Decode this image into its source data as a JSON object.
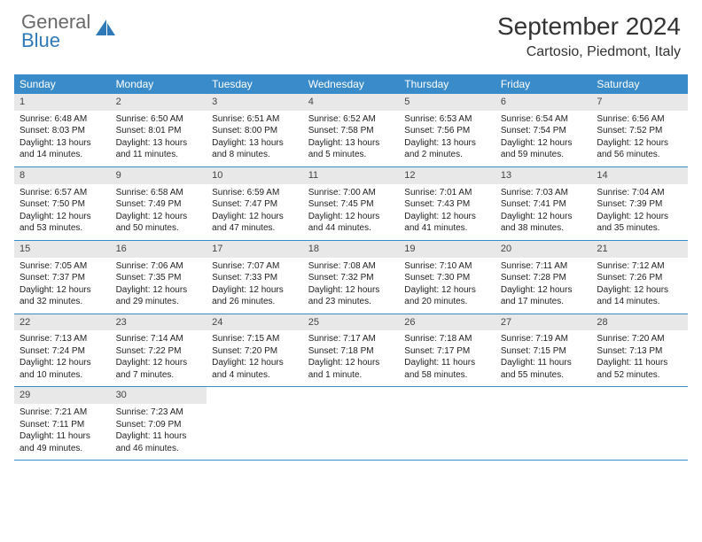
{
  "logo": {
    "general": "General",
    "blue": "Blue"
  },
  "title": "September 2024",
  "location": "Cartosio, Piedmont, Italy",
  "colors": {
    "header_bg": "#3a8bc9",
    "header_text": "#ffffff",
    "daynum_bg": "#e8e8e8",
    "border": "#3a8bc9",
    "logo_gray": "#6a6a6a",
    "logo_blue": "#2f79b9"
  },
  "weekdays": [
    "Sunday",
    "Monday",
    "Tuesday",
    "Wednesday",
    "Thursday",
    "Friday",
    "Saturday"
  ],
  "weeks": [
    [
      {
        "n": "1",
        "sr": "Sunrise: 6:48 AM",
        "ss": "Sunset: 8:03 PM",
        "d1": "Daylight: 13 hours",
        "d2": "and 14 minutes."
      },
      {
        "n": "2",
        "sr": "Sunrise: 6:50 AM",
        "ss": "Sunset: 8:01 PM",
        "d1": "Daylight: 13 hours",
        "d2": "and 11 minutes."
      },
      {
        "n": "3",
        "sr": "Sunrise: 6:51 AM",
        "ss": "Sunset: 8:00 PM",
        "d1": "Daylight: 13 hours",
        "d2": "and 8 minutes."
      },
      {
        "n": "4",
        "sr": "Sunrise: 6:52 AM",
        "ss": "Sunset: 7:58 PM",
        "d1": "Daylight: 13 hours",
        "d2": "and 5 minutes."
      },
      {
        "n": "5",
        "sr": "Sunrise: 6:53 AM",
        "ss": "Sunset: 7:56 PM",
        "d1": "Daylight: 13 hours",
        "d2": "and 2 minutes."
      },
      {
        "n": "6",
        "sr": "Sunrise: 6:54 AM",
        "ss": "Sunset: 7:54 PM",
        "d1": "Daylight: 12 hours",
        "d2": "and 59 minutes."
      },
      {
        "n": "7",
        "sr": "Sunrise: 6:56 AM",
        "ss": "Sunset: 7:52 PM",
        "d1": "Daylight: 12 hours",
        "d2": "and 56 minutes."
      }
    ],
    [
      {
        "n": "8",
        "sr": "Sunrise: 6:57 AM",
        "ss": "Sunset: 7:50 PM",
        "d1": "Daylight: 12 hours",
        "d2": "and 53 minutes."
      },
      {
        "n": "9",
        "sr": "Sunrise: 6:58 AM",
        "ss": "Sunset: 7:49 PM",
        "d1": "Daylight: 12 hours",
        "d2": "and 50 minutes."
      },
      {
        "n": "10",
        "sr": "Sunrise: 6:59 AM",
        "ss": "Sunset: 7:47 PM",
        "d1": "Daylight: 12 hours",
        "d2": "and 47 minutes."
      },
      {
        "n": "11",
        "sr": "Sunrise: 7:00 AM",
        "ss": "Sunset: 7:45 PM",
        "d1": "Daylight: 12 hours",
        "d2": "and 44 minutes."
      },
      {
        "n": "12",
        "sr": "Sunrise: 7:01 AM",
        "ss": "Sunset: 7:43 PM",
        "d1": "Daylight: 12 hours",
        "d2": "and 41 minutes."
      },
      {
        "n": "13",
        "sr": "Sunrise: 7:03 AM",
        "ss": "Sunset: 7:41 PM",
        "d1": "Daylight: 12 hours",
        "d2": "and 38 minutes."
      },
      {
        "n": "14",
        "sr": "Sunrise: 7:04 AM",
        "ss": "Sunset: 7:39 PM",
        "d1": "Daylight: 12 hours",
        "d2": "and 35 minutes."
      }
    ],
    [
      {
        "n": "15",
        "sr": "Sunrise: 7:05 AM",
        "ss": "Sunset: 7:37 PM",
        "d1": "Daylight: 12 hours",
        "d2": "and 32 minutes."
      },
      {
        "n": "16",
        "sr": "Sunrise: 7:06 AM",
        "ss": "Sunset: 7:35 PM",
        "d1": "Daylight: 12 hours",
        "d2": "and 29 minutes."
      },
      {
        "n": "17",
        "sr": "Sunrise: 7:07 AM",
        "ss": "Sunset: 7:33 PM",
        "d1": "Daylight: 12 hours",
        "d2": "and 26 minutes."
      },
      {
        "n": "18",
        "sr": "Sunrise: 7:08 AM",
        "ss": "Sunset: 7:32 PM",
        "d1": "Daylight: 12 hours",
        "d2": "and 23 minutes."
      },
      {
        "n": "19",
        "sr": "Sunrise: 7:10 AM",
        "ss": "Sunset: 7:30 PM",
        "d1": "Daylight: 12 hours",
        "d2": "and 20 minutes."
      },
      {
        "n": "20",
        "sr": "Sunrise: 7:11 AM",
        "ss": "Sunset: 7:28 PM",
        "d1": "Daylight: 12 hours",
        "d2": "and 17 minutes."
      },
      {
        "n": "21",
        "sr": "Sunrise: 7:12 AM",
        "ss": "Sunset: 7:26 PM",
        "d1": "Daylight: 12 hours",
        "d2": "and 14 minutes."
      }
    ],
    [
      {
        "n": "22",
        "sr": "Sunrise: 7:13 AM",
        "ss": "Sunset: 7:24 PM",
        "d1": "Daylight: 12 hours",
        "d2": "and 10 minutes."
      },
      {
        "n": "23",
        "sr": "Sunrise: 7:14 AM",
        "ss": "Sunset: 7:22 PM",
        "d1": "Daylight: 12 hours",
        "d2": "and 7 minutes."
      },
      {
        "n": "24",
        "sr": "Sunrise: 7:15 AM",
        "ss": "Sunset: 7:20 PM",
        "d1": "Daylight: 12 hours",
        "d2": "and 4 minutes."
      },
      {
        "n": "25",
        "sr": "Sunrise: 7:17 AM",
        "ss": "Sunset: 7:18 PM",
        "d1": "Daylight: 12 hours",
        "d2": "and 1 minute."
      },
      {
        "n": "26",
        "sr": "Sunrise: 7:18 AM",
        "ss": "Sunset: 7:17 PM",
        "d1": "Daylight: 11 hours",
        "d2": "and 58 minutes."
      },
      {
        "n": "27",
        "sr": "Sunrise: 7:19 AM",
        "ss": "Sunset: 7:15 PM",
        "d1": "Daylight: 11 hours",
        "d2": "and 55 minutes."
      },
      {
        "n": "28",
        "sr": "Sunrise: 7:20 AM",
        "ss": "Sunset: 7:13 PM",
        "d1": "Daylight: 11 hours",
        "d2": "and 52 minutes."
      }
    ],
    [
      {
        "n": "29",
        "sr": "Sunrise: 7:21 AM",
        "ss": "Sunset: 7:11 PM",
        "d1": "Daylight: 11 hours",
        "d2": "and 49 minutes."
      },
      {
        "n": "30",
        "sr": "Sunrise: 7:23 AM",
        "ss": "Sunset: 7:09 PM",
        "d1": "Daylight: 11 hours",
        "d2": "and 46 minutes."
      },
      null,
      null,
      null,
      null,
      null
    ]
  ]
}
